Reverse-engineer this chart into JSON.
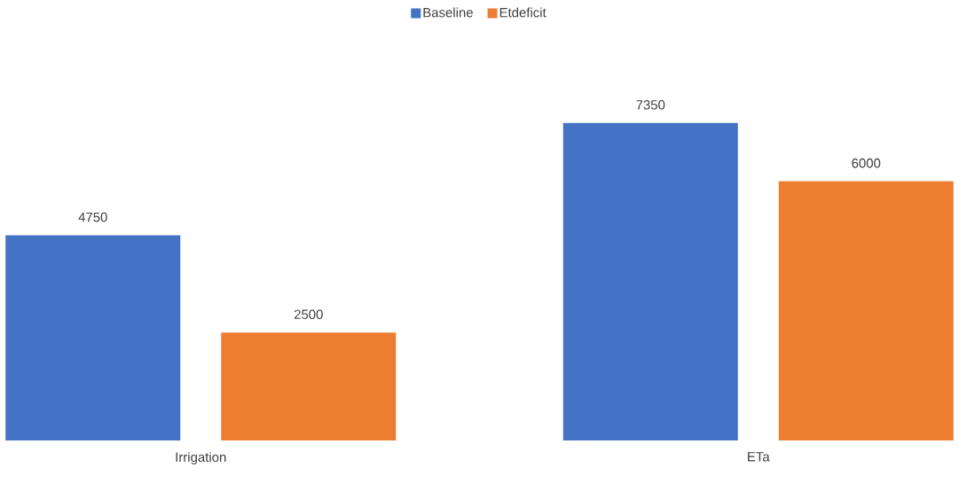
{
  "chart_data": {
    "type": "bar",
    "categories": [
      "Irrigation",
      "ETa"
    ],
    "series": [
      {
        "name": "Baseline",
        "color": "#4472c4",
        "values": [
          4750,
          7350
        ]
      },
      {
        "name": "Etdeficit",
        "color": "#ed7d31",
        "values": [
          2500,
          6000
        ]
      }
    ],
    "data_labels": true,
    "legend": "top"
  }
}
